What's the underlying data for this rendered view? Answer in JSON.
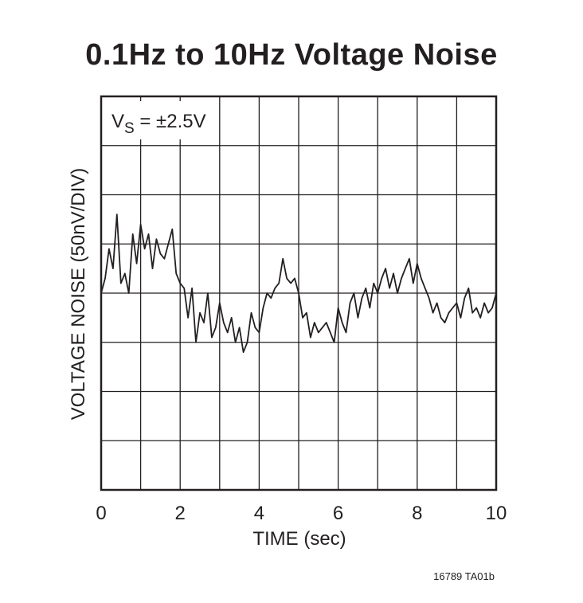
{
  "chart_data": {
    "type": "line",
    "title": "0.1Hz to 10Hz Voltage Noise",
    "xlabel": "TIME (sec)",
    "ylabel": "VOLTAGE NOISE (50nV/DIV)",
    "xlim": [
      0,
      10
    ],
    "ylim": [
      -4,
      4
    ],
    "x_ticks": [
      "0",
      "2",
      "4",
      "6",
      "8",
      "10"
    ],
    "grid": true,
    "annotation": {
      "main": "V",
      "sub": "S",
      "rest": " = ±2.5V"
    },
    "figure_ref": "16789 TA01b",
    "series": [
      {
        "color": "#231f20",
        "x": [
          0.0,
          0.1,
          0.2,
          0.3,
          0.4,
          0.5,
          0.6,
          0.7,
          0.8,
          0.9,
          1.0,
          1.1,
          1.2,
          1.3,
          1.4,
          1.5,
          1.6,
          1.7,
          1.8,
          1.9,
          2.0,
          2.1,
          2.2,
          2.3,
          2.4,
          2.5,
          2.6,
          2.7,
          2.8,
          2.9,
          3.0,
          3.1,
          3.2,
          3.3,
          3.4,
          3.5,
          3.6,
          3.7,
          3.8,
          3.9,
          4.0,
          4.1,
          4.2,
          4.3,
          4.4,
          4.5,
          4.6,
          4.7,
          4.8,
          4.9,
          5.0,
          5.1,
          5.2,
          5.3,
          5.4,
          5.5,
          5.6,
          5.7,
          5.8,
          5.9,
          6.0,
          6.1,
          6.2,
          6.3,
          6.4,
          6.5,
          6.6,
          6.7,
          6.8,
          6.9,
          7.0,
          7.1,
          7.2,
          7.3,
          7.4,
          7.5,
          7.6,
          7.7,
          7.8,
          7.9,
          8.0,
          8.1,
          8.2,
          8.3,
          8.4,
          8.5,
          8.6,
          8.7,
          8.8,
          8.9,
          9.0,
          9.1,
          9.2,
          9.3,
          9.4,
          9.5,
          9.6,
          9.7,
          9.8,
          9.9,
          10.0
        ],
        "y": [
          0.0,
          0.3,
          0.9,
          0.5,
          1.6,
          0.2,
          0.4,
          0.0,
          1.2,
          0.6,
          1.4,
          0.9,
          1.2,
          0.5,
          1.1,
          0.8,
          0.7,
          1.0,
          1.3,
          0.4,
          0.2,
          0.1,
          -0.5,
          0.1,
          -1.0,
          -0.4,
          -0.6,
          0.0,
          -0.9,
          -0.7,
          -0.2,
          -0.6,
          -0.8,
          -0.5,
          -1.0,
          -0.7,
          -1.2,
          -1.0,
          -0.4,
          -0.7,
          -0.8,
          -0.3,
          0.0,
          -0.1,
          0.1,
          0.2,
          0.7,
          0.3,
          0.2,
          0.3,
          0.0,
          -0.5,
          -0.4,
          -0.9,
          -0.6,
          -0.8,
          -0.7,
          -0.6,
          -0.8,
          -1.0,
          -0.3,
          -0.6,
          -0.8,
          -0.2,
          0.0,
          -0.5,
          -0.1,
          0.1,
          -0.3,
          0.2,
          0.0,
          0.3,
          0.5,
          0.1,
          0.4,
          0.0,
          0.3,
          0.5,
          0.7,
          0.2,
          0.6,
          0.3,
          0.1,
          -0.1,
          -0.4,
          -0.2,
          -0.5,
          -0.6,
          -0.4,
          -0.3,
          -0.2,
          -0.5,
          -0.1,
          0.1,
          -0.4,
          -0.3,
          -0.5,
          -0.2,
          -0.4,
          -0.3,
          0.0
        ]
      }
    ]
  }
}
